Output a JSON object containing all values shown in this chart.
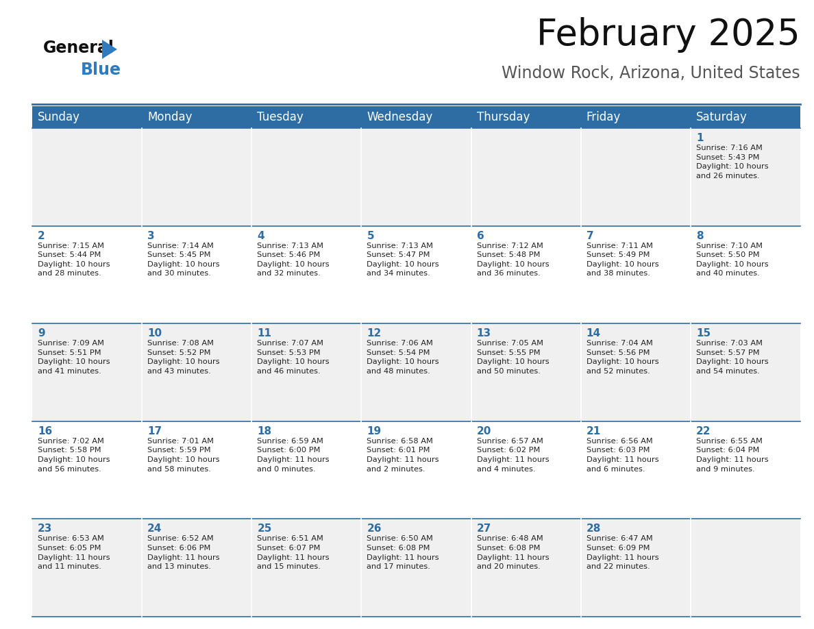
{
  "title": "February 2025",
  "subtitle": "Window Rock, Arizona, United States",
  "header_bg": "#2E6DA4",
  "header_text": "#FFFFFF",
  "cell_bg_even": "#F0F0F0",
  "cell_bg_odd": "#FFFFFF",
  "day_number_color": "#2E6DA4",
  "info_text_color": "#222222",
  "days_of_week": [
    "Sunday",
    "Monday",
    "Tuesday",
    "Wednesday",
    "Thursday",
    "Friday",
    "Saturday"
  ],
  "weeks": [
    [
      {
        "day": "",
        "info": ""
      },
      {
        "day": "",
        "info": ""
      },
      {
        "day": "",
        "info": ""
      },
      {
        "day": "",
        "info": ""
      },
      {
        "day": "",
        "info": ""
      },
      {
        "day": "",
        "info": ""
      },
      {
        "day": "1",
        "info": "Sunrise: 7:16 AM\nSunset: 5:43 PM\nDaylight: 10 hours\nand 26 minutes."
      }
    ],
    [
      {
        "day": "2",
        "info": "Sunrise: 7:15 AM\nSunset: 5:44 PM\nDaylight: 10 hours\nand 28 minutes."
      },
      {
        "day": "3",
        "info": "Sunrise: 7:14 AM\nSunset: 5:45 PM\nDaylight: 10 hours\nand 30 minutes."
      },
      {
        "day": "4",
        "info": "Sunrise: 7:13 AM\nSunset: 5:46 PM\nDaylight: 10 hours\nand 32 minutes."
      },
      {
        "day": "5",
        "info": "Sunrise: 7:13 AM\nSunset: 5:47 PM\nDaylight: 10 hours\nand 34 minutes."
      },
      {
        "day": "6",
        "info": "Sunrise: 7:12 AM\nSunset: 5:48 PM\nDaylight: 10 hours\nand 36 minutes."
      },
      {
        "day": "7",
        "info": "Sunrise: 7:11 AM\nSunset: 5:49 PM\nDaylight: 10 hours\nand 38 minutes."
      },
      {
        "day": "8",
        "info": "Sunrise: 7:10 AM\nSunset: 5:50 PM\nDaylight: 10 hours\nand 40 minutes."
      }
    ],
    [
      {
        "day": "9",
        "info": "Sunrise: 7:09 AM\nSunset: 5:51 PM\nDaylight: 10 hours\nand 41 minutes."
      },
      {
        "day": "10",
        "info": "Sunrise: 7:08 AM\nSunset: 5:52 PM\nDaylight: 10 hours\nand 43 minutes."
      },
      {
        "day": "11",
        "info": "Sunrise: 7:07 AM\nSunset: 5:53 PM\nDaylight: 10 hours\nand 46 minutes."
      },
      {
        "day": "12",
        "info": "Sunrise: 7:06 AM\nSunset: 5:54 PM\nDaylight: 10 hours\nand 48 minutes."
      },
      {
        "day": "13",
        "info": "Sunrise: 7:05 AM\nSunset: 5:55 PM\nDaylight: 10 hours\nand 50 minutes."
      },
      {
        "day": "14",
        "info": "Sunrise: 7:04 AM\nSunset: 5:56 PM\nDaylight: 10 hours\nand 52 minutes."
      },
      {
        "day": "15",
        "info": "Sunrise: 7:03 AM\nSunset: 5:57 PM\nDaylight: 10 hours\nand 54 minutes."
      }
    ],
    [
      {
        "day": "16",
        "info": "Sunrise: 7:02 AM\nSunset: 5:58 PM\nDaylight: 10 hours\nand 56 minutes."
      },
      {
        "day": "17",
        "info": "Sunrise: 7:01 AM\nSunset: 5:59 PM\nDaylight: 10 hours\nand 58 minutes."
      },
      {
        "day": "18",
        "info": "Sunrise: 6:59 AM\nSunset: 6:00 PM\nDaylight: 11 hours\nand 0 minutes."
      },
      {
        "day": "19",
        "info": "Sunrise: 6:58 AM\nSunset: 6:01 PM\nDaylight: 11 hours\nand 2 minutes."
      },
      {
        "day": "20",
        "info": "Sunrise: 6:57 AM\nSunset: 6:02 PM\nDaylight: 11 hours\nand 4 minutes."
      },
      {
        "day": "21",
        "info": "Sunrise: 6:56 AM\nSunset: 6:03 PM\nDaylight: 11 hours\nand 6 minutes."
      },
      {
        "day": "22",
        "info": "Sunrise: 6:55 AM\nSunset: 6:04 PM\nDaylight: 11 hours\nand 9 minutes."
      }
    ],
    [
      {
        "day": "23",
        "info": "Sunrise: 6:53 AM\nSunset: 6:05 PM\nDaylight: 11 hours\nand 11 minutes."
      },
      {
        "day": "24",
        "info": "Sunrise: 6:52 AM\nSunset: 6:06 PM\nDaylight: 11 hours\nand 13 minutes."
      },
      {
        "day": "25",
        "info": "Sunrise: 6:51 AM\nSunset: 6:07 PM\nDaylight: 11 hours\nand 15 minutes."
      },
      {
        "day": "26",
        "info": "Sunrise: 6:50 AM\nSunset: 6:08 PM\nDaylight: 11 hours\nand 17 minutes."
      },
      {
        "day": "27",
        "info": "Sunrise: 6:48 AM\nSunset: 6:08 PM\nDaylight: 11 hours\nand 20 minutes."
      },
      {
        "day": "28",
        "info": "Sunrise: 6:47 AM\nSunset: 6:09 PM\nDaylight: 11 hours\nand 22 minutes."
      },
      {
        "day": "",
        "info": ""
      }
    ]
  ],
  "logo_general_color": "#111111",
  "logo_blue_color": "#2E7BBF",
  "title_fontsize": 38,
  "subtitle_fontsize": 17,
  "header_fontsize": 12,
  "day_num_fontsize": 11,
  "info_fontsize": 8.2,
  "fig_width": 11.88,
  "fig_height": 9.18,
  "dpi": 100
}
